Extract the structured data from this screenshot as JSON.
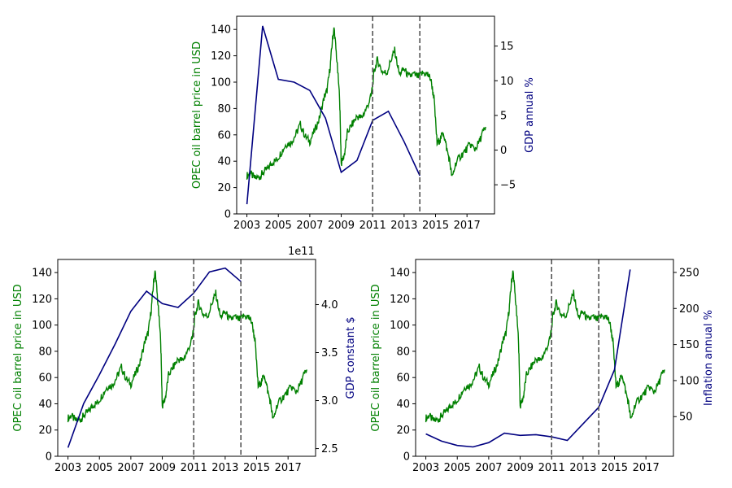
{
  "chart_data": [
    {
      "type": "line",
      "id": "top",
      "xlim": [
        2002.35,
        2018.75
      ],
      "xticks": [
        2003,
        2005,
        2007,
        2009,
        2011,
        2013,
        2015,
        2017
      ],
      "xtick_labels": [
        "2003",
        "2005",
        "2007",
        "2009",
        "2011",
        "2013",
        "2015",
        "2017"
      ],
      "left_axis": {
        "label": "OPEC oil barrel price in USD",
        "color": "#008000",
        "ylim": [
          0,
          150
        ],
        "ticks": [
          0,
          20,
          40,
          60,
          80,
          100,
          120,
          140
        ],
        "tick_labels": [
          "0",
          "20",
          "40",
          "60",
          "80",
          "100",
          "120",
          "140"
        ]
      },
      "right_axis": {
        "label": "GDP annual %",
        "color": "#000080",
        "ylim": [
          -9.2,
          19.3
        ],
        "ticks": [
          -5,
          0,
          5,
          10,
          15
        ],
        "tick_labels": [
          "−5",
          "0",
          "5",
          "10",
          "15"
        ]
      },
      "vlines": [
        2011,
        2014
      ],
      "series": [
        {
          "name": "OPEC oil barrel price in USD",
          "axis": "left",
          "color": "#008000",
          "x": [
            2003.0,
            2003.2,
            2003.5,
            2003.8,
            2004.0,
            2004.3,
            2004.6,
            2004.9,
            2005.2,
            2005.5,
            2005.8,
            2006.1,
            2006.4,
            2006.7,
            2007.0,
            2007.3,
            2007.6,
            2007.9,
            2008.1,
            2008.3,
            2008.45,
            2008.55,
            2008.7,
            2008.9,
            2009.0,
            2009.2,
            2009.4,
            2009.7,
            2010.0,
            2010.3,
            2010.6,
            2010.9,
            2011.1,
            2011.3,
            2011.6,
            2011.9,
            2012.2,
            2012.4,
            2012.7,
            2013.0,
            2013.3,
            2013.6,
            2013.9,
            2014.2,
            2014.5,
            2014.7,
            2014.9,
            2015.1,
            2015.3,
            2015.5,
            2015.7,
            2015.9,
            2016.05,
            2016.3,
            2016.6,
            2016.9,
            2017.2,
            2017.5,
            2017.8,
            2018.0,
            2018.2
          ],
          "y": [
            29,
            31,
            27,
            28,
            31,
            34,
            39,
            41,
            47,
            53,
            54,
            60,
            68,
            59,
            55,
            63,
            72,
            88,
            94,
            112,
            133,
            141,
            120,
            88,
            38,
            45,
            62,
            68,
            74,
            73,
            80,
            89,
            108,
            117,
            108,
            107,
            118,
            124,
            106,
            110,
            104,
            106,
            104,
            107,
            106,
            102,
            88,
            53,
            57,
            62,
            50,
            40,
            27,
            39,
            44,
            48,
            53,
            49,
            55,
            62,
            66
          ]
        },
        {
          "name": "GDP annual %",
          "axis": "right",
          "color": "#000080",
          "x": [
            2003,
            2004,
            2005,
            2006,
            2007,
            2008,
            2009,
            2010,
            2011,
            2012,
            2013,
            2014
          ],
          "y": [
            -7.8,
            17.9,
            10.2,
            9.8,
            8.6,
            4.6,
            -3.2,
            -1.5,
            4.3,
            5.6,
            1.2,
            -3.7
          ]
        }
      ]
    },
    {
      "type": "line",
      "id": "bottom-left",
      "xlim": [
        2002.35,
        2018.75
      ],
      "xticks": [
        2003,
        2005,
        2007,
        2009,
        2011,
        2013,
        2015,
        2017
      ],
      "xtick_labels": [
        "2003",
        "2005",
        "2007",
        "2009",
        "2011",
        "2013",
        "2015",
        "2017"
      ],
      "left_axis": {
        "label": "OPEC oil barrel price in USD",
        "color": "#008000",
        "ylim": [
          0,
          150
        ],
        "ticks": [
          0,
          20,
          40,
          60,
          80,
          100,
          120,
          140
        ],
        "tick_labels": [
          "0",
          "20",
          "40",
          "60",
          "80",
          "100",
          "120",
          "140"
        ]
      },
      "right_axis": {
        "label": "GDP constant $",
        "color": "#000080",
        "offset_text": "1e11",
        "ylim": [
          2.42,
          4.47
        ],
        "ticks": [
          2.5,
          3.0,
          3.5,
          4.0
        ],
        "tick_labels": [
          "2.5",
          "3.0",
          "3.5",
          "4.0"
        ]
      },
      "vlines": [
        2011,
        2014
      ],
      "series": [
        {
          "name": "OPEC oil barrel price in USD",
          "axis": "left",
          "color": "#008000",
          "x": [
            2003.0,
            2003.2,
            2003.5,
            2003.8,
            2004.0,
            2004.3,
            2004.6,
            2004.9,
            2005.2,
            2005.5,
            2005.8,
            2006.1,
            2006.4,
            2006.7,
            2007.0,
            2007.3,
            2007.6,
            2007.9,
            2008.1,
            2008.3,
            2008.45,
            2008.55,
            2008.7,
            2008.9,
            2009.0,
            2009.2,
            2009.4,
            2009.7,
            2010.0,
            2010.3,
            2010.6,
            2010.9,
            2011.1,
            2011.3,
            2011.6,
            2011.9,
            2012.2,
            2012.4,
            2012.7,
            2013.0,
            2013.3,
            2013.6,
            2013.9,
            2014.2,
            2014.5,
            2014.7,
            2014.9,
            2015.1,
            2015.3,
            2015.5,
            2015.7,
            2015.9,
            2016.05,
            2016.3,
            2016.6,
            2016.9,
            2017.2,
            2017.5,
            2017.8,
            2018.0,
            2018.2
          ],
          "y": [
            29,
            31,
            27,
            28,
            31,
            34,
            39,
            41,
            47,
            53,
            54,
            60,
            68,
            59,
            55,
            63,
            72,
            88,
            94,
            112,
            133,
            141,
            120,
            88,
            38,
            45,
            62,
            68,
            74,
            73,
            80,
            89,
            108,
            117,
            108,
            107,
            118,
            124,
            106,
            110,
            104,
            106,
            104,
            107,
            106,
            102,
            88,
            53,
            57,
            62,
            50,
            40,
            27,
            39,
            44,
            48,
            53,
            49,
            55,
            62,
            66
          ]
        },
        {
          "name": "GDP constant $",
          "axis": "right",
          "color": "#000080",
          "x": [
            2003,
            2004,
            2005,
            2006,
            2007,
            2008,
            2009,
            2010,
            2011,
            2012,
            2013,
            2014
          ],
          "y": [
            2.51,
            2.97,
            3.27,
            3.59,
            3.93,
            4.14,
            4.01,
            3.97,
            4.12,
            4.34,
            4.38,
            4.24
          ]
        }
      ]
    },
    {
      "type": "line",
      "id": "bottom-right",
      "xlim": [
        2002.35,
        2018.75
      ],
      "xticks": [
        2003,
        2005,
        2007,
        2009,
        2011,
        2013,
        2015,
        2017
      ],
      "xtick_labels": [
        "2003",
        "2005",
        "2007",
        "2009",
        "2011",
        "2013",
        "2015",
        "2017"
      ],
      "left_axis": {
        "label": "OPEC oil barrel price in USD",
        "color": "#008000",
        "ylim": [
          0,
          150
        ],
        "ticks": [
          0,
          20,
          40,
          60,
          80,
          100,
          120,
          140
        ],
        "tick_labels": [
          "0",
          "20",
          "40",
          "60",
          "80",
          "100",
          "120",
          "140"
        ]
      },
      "right_axis": {
        "label": "Inflation annual %",
        "color": "#000080",
        "ylim": [
          -5,
          268
        ],
        "ticks": [
          50,
          100,
          150,
          200,
          250
        ],
        "tick_labels": [
          "50",
          "100",
          "150",
          "200",
          "250"
        ]
      },
      "vlines": [
        2011,
        2014
      ],
      "series": [
        {
          "name": "OPEC oil barrel price in USD",
          "axis": "left",
          "color": "#008000",
          "x": [
            2003.0,
            2003.2,
            2003.5,
            2003.8,
            2004.0,
            2004.3,
            2004.6,
            2004.9,
            2005.2,
            2005.5,
            2005.8,
            2006.1,
            2006.4,
            2006.7,
            2007.0,
            2007.3,
            2007.6,
            2007.9,
            2008.1,
            2008.3,
            2008.45,
            2008.55,
            2008.7,
            2008.9,
            2009.0,
            2009.2,
            2009.4,
            2009.7,
            2010.0,
            2010.3,
            2010.6,
            2010.9,
            2011.1,
            2011.3,
            2011.6,
            2011.9,
            2012.2,
            2012.4,
            2012.7,
            2013.0,
            2013.3,
            2013.6,
            2013.9,
            2014.2,
            2014.5,
            2014.7,
            2014.9,
            2015.1,
            2015.3,
            2015.5,
            2015.7,
            2015.9,
            2016.05,
            2016.3,
            2016.6,
            2016.9,
            2017.2,
            2017.5,
            2017.8,
            2018.0,
            2018.2
          ],
          "y": [
            29,
            31,
            27,
            28,
            31,
            34,
            39,
            41,
            47,
            53,
            54,
            60,
            68,
            59,
            55,
            63,
            72,
            88,
            94,
            112,
            133,
            141,
            120,
            88,
            38,
            45,
            62,
            68,
            74,
            73,
            80,
            89,
            108,
            117,
            108,
            107,
            118,
            124,
            106,
            110,
            104,
            106,
            104,
            107,
            106,
            102,
            88,
            53,
            57,
            62,
            50,
            40,
            27,
            39,
            44,
            48,
            53,
            49,
            55,
            62,
            66
          ]
        },
        {
          "name": "Inflation annual %",
          "axis": "right",
          "color": "#000080",
          "x": [
            2003,
            2004,
            2005,
            2006,
            2007,
            2008,
            2009,
            2010,
            2011,
            2012,
            2013,
            2014,
            2015,
            2016
          ],
          "y": [
            26.0,
            16.0,
            10.0,
            8.0,
            14.0,
            27.0,
            24.0,
            25.0,
            22.0,
            17.0,
            40.0,
            63.0,
            115.0,
            254.0
          ]
        }
      ]
    }
  ]
}
